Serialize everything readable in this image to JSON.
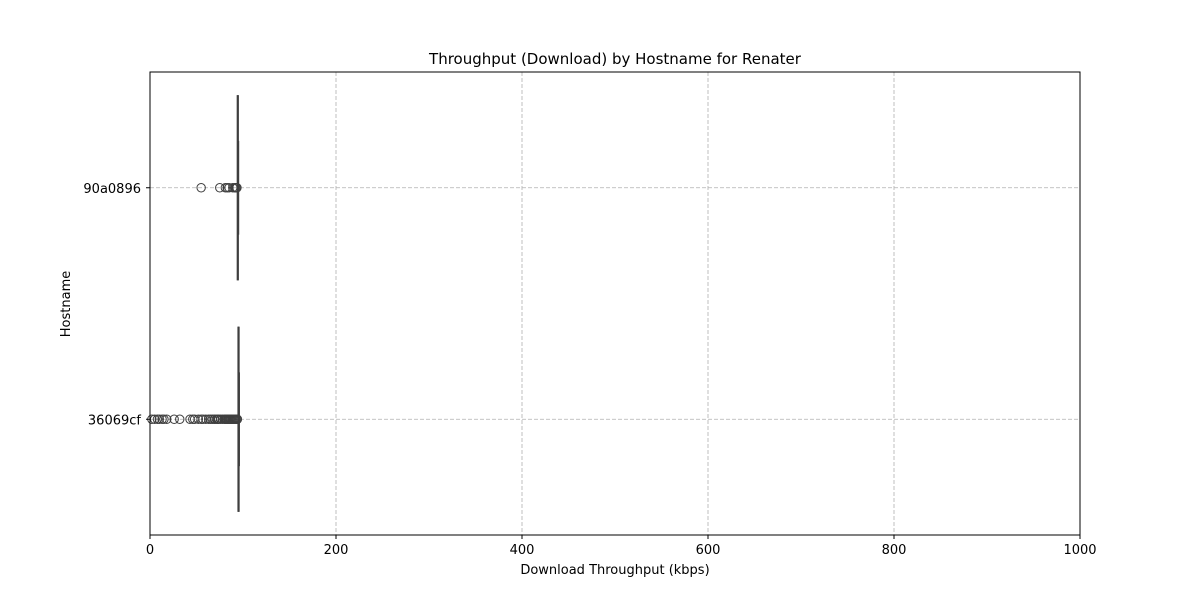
{
  "chart_data": {
    "type": "box",
    "orientation": "horizontal",
    "title": "Throughput (Download) by Hostname for Renater",
    "xlabel": "Download Throughput (kbps)",
    "ylabel": "Hostname",
    "xlim": [
      0,
      1000
    ],
    "x_ticks": [
      0,
      200,
      400,
      600,
      800,
      1000
    ],
    "grid": true,
    "categories": [
      "90a0896",
      "36069cf"
    ],
    "boxes": [
      {
        "name": "90a0896",
        "whisker_low": 94,
        "q1": 94.2,
        "median": 94.4,
        "q3": 94.6,
        "whisker_high": 94.8,
        "outliers": [
          55,
          75,
          81,
          83,
          85,
          89,
          91,
          92,
          93,
          93.5
        ]
      },
      {
        "name": "36069cf",
        "whisker_low": 94.8,
        "q1": 95,
        "median": 95.2,
        "q3": 95.4,
        "whisker_high": 95.6,
        "outliers": [
          2,
          5,
          8,
          10,
          13,
          15,
          18,
          26,
          32,
          43,
          46,
          48,
          52,
          55,
          57,
          60,
          63,
          65,
          67,
          69,
          70,
          72,
          73,
          74,
          76,
          78,
          80,
          81,
          82,
          83,
          84,
          85,
          86,
          87,
          88,
          89,
          90,
          91,
          92,
          93,
          94
        ]
      }
    ]
  }
}
